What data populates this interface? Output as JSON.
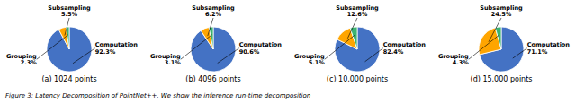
{
  "caption": "Figure 3: Latency Decomposition of PointNet++. We show the inference run-time decomposition",
  "chart_data": [
    {
      "type": "pie",
      "title": "(a) 1024 points",
      "categories": [
        "Computation",
        "Subsampling",
        "Grouping"
      ],
      "values": [
        92.3,
        5.5,
        2.3
      ],
      "value_labels": [
        "92.3%",
        "5.5%",
        "2.3%"
      ],
      "data_labels": true,
      "colors": [
        "#4472C4",
        "#FFA500",
        "#3CB371"
      ]
    },
    {
      "type": "pie",
      "title": "(b) 4096 points",
      "categories": [
        "Computation",
        "Subsampling",
        "Grouping"
      ],
      "values": [
        90.6,
        6.2,
        3.1
      ],
      "value_labels": [
        "90.6%",
        "6.2%",
        "3.1%"
      ],
      "data_labels": true,
      "colors": [
        "#4472C4",
        "#FFA500",
        "#3CB371"
      ]
    },
    {
      "type": "pie",
      "title": "(c) 10,000 points",
      "categories": [
        "Computation",
        "Subsampling",
        "Grouping"
      ],
      "values": [
        82.4,
        12.6,
        5.1
      ],
      "value_labels": [
        "82.4%",
        "12.6%",
        "5.1%"
      ],
      "data_labels": true,
      "colors": [
        "#4472C4",
        "#FFA500",
        "#3CB371"
      ]
    },
    {
      "type": "pie",
      "title": "(d) 15,000 points",
      "categories": [
        "Computation",
        "Subsampling",
        "Grouping"
      ],
      "values": [
        71.1,
        24.5,
        4.3
      ],
      "value_labels": [
        "71.1%",
        "24.5%",
        "4.3%"
      ],
      "data_labels": true,
      "colors": [
        "#4472C4",
        "#FFA500",
        "#3CB371"
      ]
    }
  ]
}
